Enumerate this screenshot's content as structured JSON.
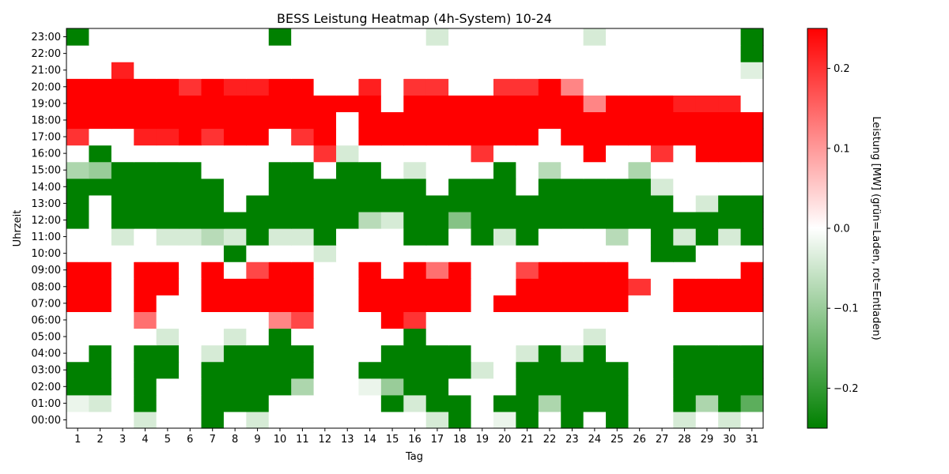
{
  "chart_data": {
    "type": "heatmap",
    "title": "BESS Leistung Heatmap (4h-System) 10-24",
    "xlabel": "Tag",
    "ylabel": "Uhrzeit",
    "colorbar_label": "Leistung [MW] (grün=Laden, rot=Entladen)",
    "x_categories": [
      "1",
      "2",
      "3",
      "4",
      "5",
      "6",
      "7",
      "8",
      "9",
      "10",
      "11",
      "12",
      "13",
      "14",
      "15",
      "16",
      "17",
      "18",
      "19",
      "20",
      "21",
      "22",
      "23",
      "24",
      "25",
      "26",
      "27",
      "28",
      "29",
      "30",
      "31"
    ],
    "y_categories": [
      "00:00",
      "01:00",
      "02:00",
      "03:00",
      "04:00",
      "05:00",
      "06:00",
      "07:00",
      "08:00",
      "09:00",
      "10:00",
      "11:00",
      "12:00",
      "13:00",
      "14:00",
      "15:00",
      "16:00",
      "17:00",
      "18:00",
      "19:00",
      "20:00",
      "21:00",
      "22:00",
      "23:00"
    ],
    "colorbar_ticks": [
      -0.2,
      -0.1,
      0.0,
      0.1,
      0.2
    ],
    "colorbar_tick_labels": [
      "−0.2",
      "−0.1",
      "0.0",
      "0.1",
      "0.2"
    ],
    "vmin": -0.25,
    "vmax": 0.25,
    "colors": {
      "low": "#008000",
      "mid": "#ffffff",
      "high": "#ff0000"
    },
    "values": [
      [
        0,
        0,
        0,
        -0.04,
        0,
        0,
        -0.25,
        0,
        -0.04,
        0,
        0,
        0,
        0,
        0,
        0,
        0,
        -0.04,
        -0.25,
        0,
        -0.02,
        -0.25,
        0,
        -0.25,
        0,
        -0.25,
        0,
        0,
        -0.04,
        0,
        -0.04,
        0
      ],
      [
        -0.02,
        -0.04,
        0,
        -0.25,
        0,
        0,
        -0.25,
        -0.25,
        -0.25,
        0,
        0,
        0,
        0,
        0,
        -0.25,
        -0.04,
        -0.25,
        -0.25,
        0,
        -0.25,
        -0.25,
        -0.08,
        -0.25,
        -0.25,
        -0.25,
        0,
        0,
        -0.25,
        -0.08,
        -0.25,
        -0.16
      ],
      [
        -0.25,
        -0.25,
        0,
        -0.25,
        0,
        0,
        -0.25,
        -0.25,
        -0.25,
        -0.25,
        -0.08,
        0,
        0,
        -0.02,
        -0.1,
        -0.25,
        -0.25,
        0,
        0,
        0,
        -0.25,
        -0.25,
        -0.25,
        -0.25,
        -0.25,
        0,
        0,
        -0.25,
        -0.25,
        -0.25,
        -0.25
      ],
      [
        -0.25,
        -0.25,
        0,
        -0.25,
        -0.25,
        0,
        -0.25,
        -0.25,
        -0.25,
        -0.25,
        -0.25,
        0,
        0,
        -0.25,
        -0.25,
        -0.25,
        -0.25,
        -0.25,
        -0.04,
        0,
        -0.25,
        -0.25,
        -0.25,
        -0.25,
        -0.25,
        0,
        0,
        -0.25,
        -0.25,
        -0.25,
        -0.25
      ],
      [
        0,
        -0.25,
        0,
        -0.25,
        -0.25,
        0,
        -0.04,
        -0.25,
        -0.25,
        -0.25,
        -0.25,
        0,
        0,
        0,
        -0.25,
        -0.25,
        -0.25,
        -0.25,
        0,
        0,
        -0.04,
        -0.25,
        -0.04,
        -0.25,
        0,
        0,
        0,
        -0.25,
        -0.25,
        -0.25,
        -0.25
      ],
      [
        0,
        0,
        0,
        0,
        -0.04,
        0,
        0,
        -0.04,
        0,
        -0.25,
        0,
        0,
        0,
        0,
        0,
        -0.25,
        0,
        0,
        0,
        0,
        0,
        0,
        0,
        -0.04,
        0,
        0,
        0,
        0,
        0,
        0,
        0
      ],
      [
        0,
        0,
        0,
        0.14,
        0,
        0,
        0,
        0,
        0,
        0.12,
        0.18,
        0,
        0,
        0,
        0.25,
        0.2,
        0,
        0,
        0,
        0,
        0,
        0,
        0,
        0,
        0,
        0,
        0,
        0,
        0,
        0,
        0
      ],
      [
        0.25,
        0.25,
        0,
        0.25,
        0,
        0,
        0.25,
        0.25,
        0.25,
        0.25,
        0.25,
        0,
        0,
        0.25,
        0.25,
        0.25,
        0.25,
        0.25,
        0,
        0.25,
        0.25,
        0.25,
        0.25,
        0.25,
        0.25,
        0,
        0,
        0.25,
        0.25,
        0.25,
        0.25
      ],
      [
        0.25,
        0.25,
        0,
        0.25,
        0.25,
        0,
        0.25,
        0.25,
        0.25,
        0.25,
        0.25,
        0,
        0,
        0.25,
        0.25,
        0.25,
        0.25,
        0.25,
        0,
        0,
        0.25,
        0.25,
        0.25,
        0.25,
        0.25,
        0.2,
        0,
        0.25,
        0.25,
        0.25,
        0.25
      ],
      [
        0.25,
        0.25,
        0,
        0.25,
        0.25,
        0,
        0.25,
        0,
        0.18,
        0.25,
        0.25,
        0,
        0,
        0.25,
        0,
        0.25,
        0.14,
        0.25,
        0,
        0,
        0.18,
        0.25,
        0.25,
        0.25,
        0.25,
        0,
        0,
        0,
        0,
        0,
        0.25
      ],
      [
        0,
        0,
        0,
        0,
        0,
        0,
        0,
        -0.25,
        0,
        0,
        0,
        -0.04,
        0,
        0,
        0,
        0,
        0,
        0,
        0,
        0,
        0,
        0,
        0,
        0,
        0,
        0,
        -0.25,
        -0.25,
        0,
        0,
        0
      ],
      [
        0,
        0,
        -0.04,
        0,
        -0.04,
        -0.04,
        -0.07,
        -0.04,
        -0.25,
        -0.04,
        -0.04,
        -0.25,
        0,
        0,
        0,
        -0.25,
        -0.25,
        0,
        -0.25,
        -0.04,
        -0.25,
        0,
        0,
        0,
        -0.07,
        0,
        -0.25,
        -0.04,
        -0.25,
        -0.04,
        -0.25
      ],
      [
        -0.25,
        0,
        -0.25,
        -0.25,
        -0.25,
        -0.25,
        -0.25,
        -0.25,
        -0.25,
        -0.25,
        -0.25,
        -0.25,
        -0.25,
        -0.07,
        -0.04,
        -0.25,
        -0.25,
        -0.12,
        -0.25,
        -0.25,
        -0.25,
        -0.25,
        -0.25,
        -0.25,
        -0.25,
        -0.25,
        -0.25,
        -0.25,
        -0.25,
        -0.25,
        -0.25
      ],
      [
        -0.25,
        0,
        -0.25,
        -0.25,
        -0.25,
        -0.25,
        -0.25,
        0,
        -0.25,
        -0.25,
        -0.25,
        -0.25,
        -0.25,
        -0.25,
        -0.25,
        -0.25,
        -0.25,
        -0.25,
        -0.25,
        -0.25,
        -0.25,
        -0.25,
        -0.25,
        -0.25,
        -0.25,
        -0.25,
        -0.25,
        0,
        -0.04,
        -0.25,
        -0.25
      ],
      [
        -0.25,
        -0.25,
        -0.25,
        -0.25,
        -0.25,
        -0.25,
        -0.25,
        0,
        0,
        -0.25,
        -0.25,
        -0.25,
        -0.25,
        -0.25,
        -0.25,
        -0.25,
        0,
        -0.25,
        -0.25,
        -0.25,
        0,
        -0.25,
        -0.25,
        -0.25,
        -0.25,
        -0.25,
        -0.04,
        0,
        0,
        0,
        0
      ],
      [
        -0.08,
        -0.1,
        -0.25,
        -0.25,
        -0.25,
        -0.25,
        0,
        0,
        0,
        -0.25,
        -0.25,
        0,
        -0.25,
        -0.25,
        0,
        -0.04,
        0,
        0,
        0,
        -0.25,
        0,
        -0.07,
        0,
        0,
        0,
        -0.08,
        0,
        0,
        0,
        0,
        0
      ],
      [
        0,
        -0.25,
        0,
        0,
        0,
        0,
        0,
        0,
        0,
        0,
        0,
        0.2,
        -0.04,
        0,
        0,
        0,
        0,
        0,
        0.2,
        0,
        0,
        0,
        0,
        0.25,
        0,
        0,
        0.2,
        0,
        0.25,
        0.25,
        0.25
      ],
      [
        0.2,
        0,
        0,
        0.22,
        0.22,
        0.25,
        0.2,
        0.25,
        0.25,
        0,
        0.2,
        0.25,
        0,
        0.25,
        0.25,
        0.25,
        0.25,
        0.25,
        0.25,
        0.25,
        0.25,
        0,
        0.25,
        0.25,
        0.25,
        0.25,
        0.25,
        0.25,
        0.25,
        0.25,
        0.25
      ],
      [
        0.25,
        0.25,
        0.25,
        0.25,
        0.25,
        0.25,
        0.25,
        0.25,
        0.25,
        0.25,
        0.25,
        0.25,
        0,
        0.25,
        0.25,
        0.25,
        0.25,
        0.25,
        0.25,
        0.25,
        0.25,
        0.25,
        0.25,
        0.25,
        0.25,
        0.25,
        0.25,
        0.25,
        0.25,
        0.25,
        0.25
      ],
      [
        0.25,
        0.25,
        0.25,
        0.25,
        0.25,
        0.25,
        0.25,
        0.25,
        0.25,
        0.25,
        0.25,
        0.25,
        0.25,
        0.25,
        0,
        0.25,
        0.25,
        0.25,
        0.25,
        0.25,
        0.25,
        0.25,
        0.25,
        0.12,
        0.25,
        0.25,
        0.25,
        0.22,
        0.22,
        0.22,
        0
      ],
      [
        0.25,
        0.25,
        0.25,
        0.25,
        0.25,
        0.2,
        0.25,
        0.22,
        0.22,
        0.25,
        0.25,
        0,
        0,
        0.22,
        0,
        0.2,
        0.2,
        0,
        0,
        0.2,
        0.2,
        0.25,
        0.12,
        0,
        0,
        0,
        0,
        0,
        0,
        0,
        0
      ],
      [
        0,
        0,
        0.22,
        0,
        0,
        0,
        0,
        0,
        0,
        0,
        0,
        0,
        0,
        0,
        0,
        0,
        0,
        0,
        0,
        0,
        0,
        0,
        0,
        0,
        0,
        0,
        0,
        0,
        0,
        0,
        -0.03
      ],
      [
        0,
        0,
        0,
        0,
        0,
        0,
        0,
        0,
        0,
        0,
        0,
        0,
        0,
        0,
        0,
        0,
        0,
        0,
        0,
        0,
        0,
        0,
        0,
        0,
        0,
        0,
        0,
        0,
        0,
        0,
        -0.25
      ],
      [
        -0.25,
        0,
        0,
        0,
        0,
        0,
        0,
        0,
        0,
        -0.25,
        0,
        0,
        0,
        0,
        0,
        0,
        -0.04,
        0,
        0,
        0,
        0,
        0,
        0,
        -0.04,
        0,
        0,
        0,
        0,
        0,
        0,
        -0.25
      ]
    ]
  }
}
